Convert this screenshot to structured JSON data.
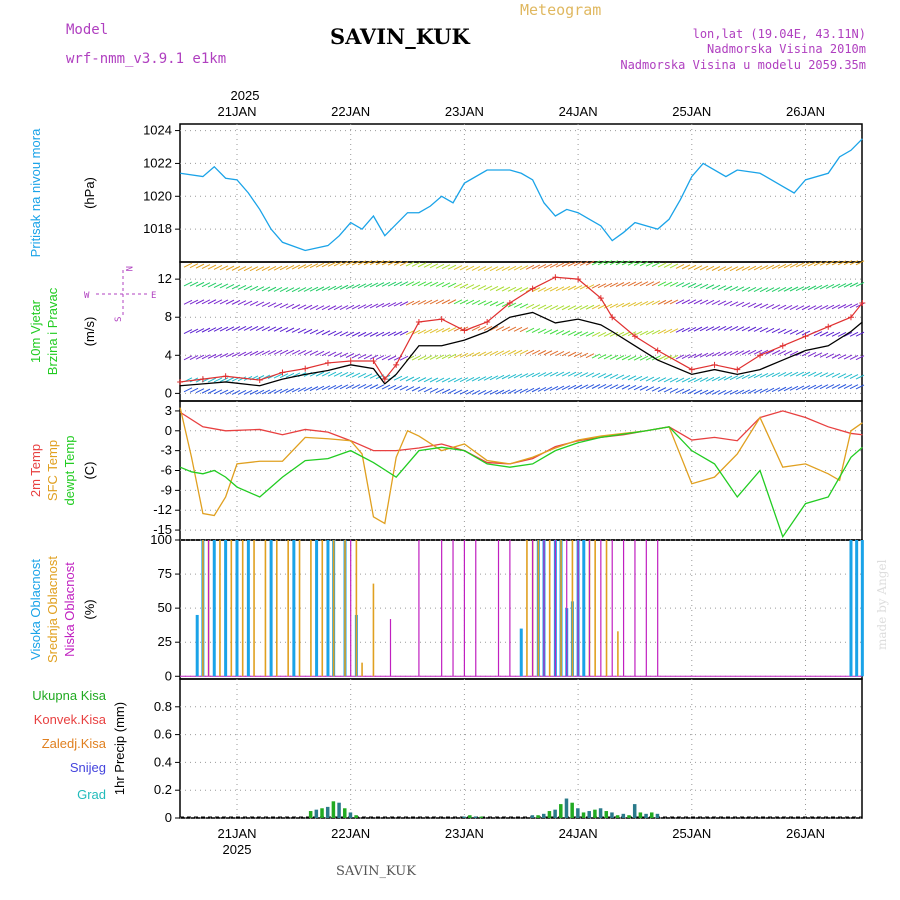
{
  "header": {
    "model_label": "Model",
    "model_name": "wrf-nmm_v3.9.1  e1km",
    "station": "SAVIN_KUK",
    "product": "Meteogram",
    "coords": "lon,lat (19.04E, 43.11N)",
    "elev": "Nadmorska Visina 2010m",
    "elev_model": "Nadmorska Visina u modelu 2059.35m",
    "footer": "SAVIN_KUK",
    "credit": "made by Angel"
  },
  "axis_dates": {
    "year": "2025",
    "days": [
      "21JAN",
      "22JAN",
      "23JAN",
      "24JAN",
      "25JAN",
      "26JAN"
    ]
  },
  "colors": {
    "pressure": "#1aa3e8",
    "wind_speed": "#000000",
    "wind_gust": "#e03030",
    "temp2m": "#e84040",
    "sfc": "#e0a020",
    "dewpt": "#22cc22",
    "high_cloud": "#1aa3e8",
    "mid_cloud": "#e0a020",
    "low_cloud": "#c020c0",
    "precip_total": "#22aa22",
    "precip_conv": "#e84040",
    "freezing": "#e08020",
    "snow": "#4444dd",
    "hail": "#22bbbb"
  },
  "chart_data": [
    {
      "type": "line",
      "panel": "pressure",
      "ylabel_main": "Pritisak na nivou mora",
      "unit": "(hPa)",
      "ylim": [
        1016,
        1024.4
      ],
      "yticks": [
        1018,
        1020,
        1022,
        1024
      ],
      "x_days": [
        -0.5,
        -0.3,
        -0.2,
        -0.1,
        0.0,
        0.1,
        0.2,
        0.3,
        0.4,
        0.6,
        0.8,
        0.9,
        1.0,
        1.1,
        1.2,
        1.3,
        1.5,
        1.6,
        1.7,
        1.8,
        1.9,
        2.0,
        2.2,
        2.4,
        2.5,
        2.6,
        2.7,
        2.8,
        2.9,
        3.0,
        3.1,
        3.2,
        3.3,
        3.4,
        3.5,
        3.7,
        3.8,
        3.9,
        4.0,
        4.1,
        4.3,
        4.4,
        4.6,
        4.7,
        4.8,
        4.9,
        5.0,
        5.2,
        5.3,
        5.4,
        5.5
      ],
      "values": [
        1021.4,
        1021.2,
        1021.8,
        1021.1,
        1021.0,
        1020.2,
        1019.2,
        1018.0,
        1017.2,
        1016.7,
        1017.0,
        1017.6,
        1018.4,
        1018.0,
        1018.8,
        1017.6,
        1019.0,
        1019.0,
        1019.4,
        1020.0,
        1019.6,
        1020.8,
        1021.6,
        1021.6,
        1021.4,
        1021.0,
        1019.6,
        1018.8,
        1019.2,
        1019.0,
        1018.6,
        1018.2,
        1017.3,
        1017.8,
        1018.4,
        1018.0,
        1018.6,
        1019.8,
        1021.2,
        1022.0,
        1021.2,
        1021.6,
        1021.4,
        1021.0,
        1020.6,
        1020.2,
        1021.0,
        1021.4,
        1022.4,
        1022.8,
        1023.5
      ]
    },
    {
      "type": "line",
      "panel": "wind",
      "ylabel_main": "10m Vjetar",
      "ylabel_sub": "Brzina i Pravac",
      "unit": "(m/s)",
      "ylim": [
        -0.8,
        13.8
      ],
      "yticks": [
        0,
        4,
        8,
        12
      ],
      "compass": {
        "n": "N",
        "w": "W",
        "e": "E",
        "s": "S"
      },
      "series": [
        {
          "x_days": [
            -0.5,
            -0.3,
            -0.1,
            0.2,
            0.4,
            0.6,
            0.8,
            1.0,
            1.2,
            1.3,
            1.4,
            1.6,
            1.8,
            2.0,
            2.2,
            2.4,
            2.6,
            2.8,
            3.0,
            3.2,
            3.3,
            3.5,
            3.7,
            4.0,
            4.2,
            4.4,
            4.6,
            4.8,
            5.0,
            5.2,
            5.4,
            5.5
          ],
          "values": [
            0.8,
            1.0,
            1.2,
            0.8,
            1.5,
            2.0,
            2.4,
            3.0,
            2.6,
            1.0,
            2.0,
            5.0,
            5.0,
            5.6,
            6.5,
            8.0,
            8.5,
            7.4,
            7.8,
            7.2,
            6.5,
            5.0,
            3.5,
            2.0,
            2.5,
            2.0,
            2.5,
            3.5,
            4.5,
            5.0,
            6.5,
            7.5
          ]
        },
        {
          "x_days": [
            -0.5,
            -0.3,
            -0.1,
            0.2,
            0.4,
            0.6,
            0.8,
            1.0,
            1.2,
            1.3,
            1.4,
            1.6,
            1.8,
            2.0,
            2.2,
            2.4,
            2.6,
            2.8,
            3.0,
            3.2,
            3.3,
            3.5,
            3.7,
            4.0,
            4.2,
            4.4,
            4.6,
            4.8,
            5.0,
            5.2,
            5.4,
            5.5
          ],
          "values": [
            1.2,
            1.5,
            1.8,
            1.4,
            2.2,
            2.6,
            3.2,
            3.4,
            3.4,
            1.5,
            3.0,
            7.5,
            7.8,
            6.6,
            7.5,
            9.5,
            11.0,
            12.2,
            12.0,
            10.0,
            8.0,
            6.0,
            4.5,
            2.5,
            3.0,
            2.5,
            4.0,
            5.0,
            6.0,
            7.0,
            8.0,
            9.5
          ]
        }
      ]
    },
    {
      "type": "line",
      "panel": "temperature",
      "ylabel_main": "2m Temp",
      "ylabel_sub": "SFC Temp",
      "ylabel_sub2": "dewpt Temp",
      "unit": "(C)",
      "ylim": [
        -16.5,
        4.5
      ],
      "yticks": [
        3,
        0,
        -3,
        -6,
        -9,
        -12,
        -15
      ],
      "series": [
        {
          "x_days": [
            -0.5,
            -0.3,
            -0.1,
            0.2,
            0.4,
            0.6,
            0.8,
            1.0,
            1.2,
            1.4,
            1.6,
            1.8,
            2.0,
            2.2,
            2.4,
            2.6,
            2.8,
            3.0,
            3.2,
            3.4,
            3.6,
            3.8,
            4.0,
            4.2,
            4.4,
            4.6,
            4.8,
            5.0,
            5.2,
            5.4,
            5.5
          ],
          "values": [
            2.8,
            0.6,
            0.0,
            0.2,
            -0.6,
            0.2,
            -0.2,
            -1.5,
            -3.0,
            -3.0,
            -2.6,
            -2.0,
            -3.0,
            -4.8,
            -5.0,
            -4.2,
            -2.4,
            -1.5,
            -1.0,
            -0.6,
            0.0,
            0.6,
            -1.4,
            -1.0,
            -1.5,
            2.0,
            3.0,
            2.0,
            0.6,
            -0.4,
            -0.6
          ]
        },
        {
          "x_days": [
            -0.5,
            -0.4,
            -0.3,
            -0.2,
            -0.1,
            0.0,
            0.2,
            0.4,
            0.6,
            0.8,
            1.0,
            1.1,
            1.2,
            1.3,
            1.4,
            1.5,
            1.6,
            1.8,
            2.0,
            2.2,
            2.4,
            2.6,
            2.8,
            3.0,
            3.2,
            3.4,
            3.6,
            3.8,
            4.0,
            4.2,
            4.4,
            4.6,
            4.8,
            5.0,
            5.2,
            5.3,
            5.4,
            5.5
          ],
          "values": [
            3.5,
            -4.0,
            -12.5,
            -12.8,
            -10.0,
            -5.0,
            -4.6,
            -4.6,
            -1.0,
            -1.2,
            -1.5,
            -3.5,
            -13.0,
            -14.0,
            -4.0,
            0.0,
            -0.8,
            -3.0,
            -2.0,
            -4.5,
            -5.0,
            -4.0,
            -2.6,
            -1.4,
            -0.8,
            -0.4,
            0.0,
            0.6,
            -8.0,
            -7.0,
            -3.5,
            2.0,
            -5.5,
            -5.0,
            -6.5,
            -7.5,
            0.0,
            1.2
          ]
        },
        {
          "x_days": [
            -0.5,
            -0.4,
            -0.3,
            -0.2,
            -0.1,
            0.0,
            0.2,
            0.4,
            0.6,
            0.8,
            1.0,
            1.2,
            1.4,
            1.6,
            1.8,
            2.0,
            2.2,
            2.4,
            2.6,
            2.8,
            3.0,
            3.2,
            3.4,
            3.6,
            3.8,
            4.0,
            4.2,
            4.4,
            4.6,
            4.8,
            5.0,
            5.2,
            5.4,
            5.5
          ],
          "values": [
            -5.5,
            -6.2,
            -6.5,
            -6.0,
            -7.0,
            -8.5,
            -10.0,
            -7.0,
            -4.5,
            -4.2,
            -3.0,
            -4.8,
            -7.0,
            -3.0,
            -2.5,
            -3.0,
            -5.0,
            -5.5,
            -5.0,
            -3.0,
            -1.8,
            -1.0,
            -0.5,
            0.0,
            0.6,
            -3.0,
            -5.0,
            -10.0,
            -6.0,
            -16.0,
            -11.0,
            -10.0,
            -4.0,
            -2.5
          ]
        }
      ]
    },
    {
      "type": "bar",
      "panel": "cloud",
      "ylabel_main": "Visoka Oblacnost",
      "ylabel_sub": "Srednja Oblacnost",
      "ylabel_sub2": "Niska Oblacnost",
      "unit": "(%)",
      "ylim": [
        -2,
        100
      ],
      "yticks": [
        0,
        25,
        50,
        75,
        100
      ],
      "series": [
        {
          "x_days": [
            -0.35,
            -0.3,
            -0.2,
            -0.1,
            0.0,
            0.1,
            0.3,
            0.5,
            0.7,
            0.8,
            0.85,
            0.95,
            1.05,
            2.5,
            2.65,
            2.7,
            2.8,
            2.85,
            2.9,
            2.95,
            3.0,
            3.05,
            5.4,
            5.45,
            5.5
          ],
          "values": [
            45,
            100,
            100,
            100,
            100,
            100,
            100,
            100,
            100,
            100,
            100,
            100,
            45,
            35,
            100,
            100,
            100,
            100,
            50,
            55,
            100,
            100,
            100,
            100,
            100
          ]
        },
        {
          "x_days": [
            -0.3,
            -0.25,
            -0.15,
            -0.05,
            0.05,
            0.15,
            0.25,
            0.35,
            0.45,
            0.55,
            0.65,
            0.75,
            0.85,
            0.95,
            1.05,
            1.1,
            1.2,
            2.55,
            2.6,
            2.65,
            2.75,
            2.85,
            2.95,
            3.1,
            3.15,
            3.25,
            3.35
          ],
          "values": [
            100,
            100,
            100,
            100,
            100,
            100,
            100,
            100,
            100,
            100,
            100,
            100,
            100,
            100,
            100,
            10,
            68,
            100,
            100,
            100,
            100,
            100,
            100,
            100,
            100,
            100,
            33
          ]
        },
        {
          "x_days": [
            -0.25,
            1.0,
            1.35,
            1.6,
            1.8,
            1.9,
            2.0,
            2.1,
            2.3,
            2.4,
            2.6,
            2.7,
            2.8,
            2.9,
            3.0,
            3.1,
            3.2,
            3.3,
            3.4,
            3.5,
            3.6,
            3.7
          ],
          "values": [
            100,
            100,
            42,
            100,
            100,
            100,
            100,
            100,
            100,
            100,
            100,
            100,
            100,
            100,
            100,
            100,
            100,
            100,
            100,
            100,
            100,
            100
          ]
        }
      ]
    },
    {
      "type": "bar",
      "panel": "precip",
      "ylabel_main": "Ukupna Kisa",
      "ylabel_sub": "Konvek.Kisa",
      "ylabel_sub2": "Zaledj.Kisa",
      "ylabel_sub3": "Snijeg",
      "ylabel_sub4": "Grad",
      "unit": "1hr Precip (mm)",
      "ylim": [
        0,
        1.0
      ],
      "yticks": [
        0,
        0.2,
        0.4,
        0.6,
        0.8
      ],
      "x_days": [
        0.65,
        0.7,
        0.75,
        0.8,
        0.85,
        0.9,
        0.95,
        1.0,
        1.05,
        2.0,
        2.05,
        2.1,
        2.15,
        2.6,
        2.65,
        2.7,
        2.75,
        2.8,
        2.85,
        2.9,
        2.95,
        3.0,
        3.05,
        3.1,
        3.15,
        3.2,
        3.25,
        3.3,
        3.35,
        3.4,
        3.45,
        3.5,
        3.55,
        3.6,
        3.65,
        3.7
      ],
      "values": [
        0.05,
        0.06,
        0.07,
        0.08,
        0.12,
        0.11,
        0.07,
        0.04,
        0.02,
        0.01,
        0.02,
        0.01,
        0.01,
        0.02,
        0.02,
        0.03,
        0.05,
        0.06,
        0.1,
        0.14,
        0.11,
        0.07,
        0.04,
        0.05,
        0.06,
        0.07,
        0.05,
        0.04,
        0.02,
        0.03,
        0.02,
        0.1,
        0.04,
        0.03,
        0.04,
        0.03
      ]
    }
  ]
}
